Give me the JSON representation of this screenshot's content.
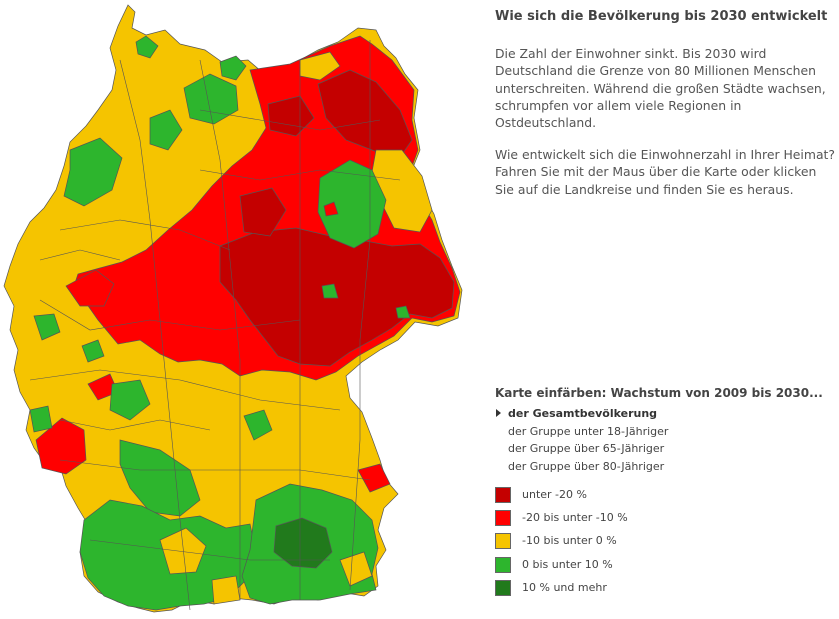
{
  "title": "Wie sich die Bevölkerung bis 2030 entwickelt",
  "paragraphs": [
    "Die Zahl der Einwohner sinkt. Bis 2030 wird Deutschland die Grenze von 80 Millionen Menschen unterschreiten. Während die großen Städte wachsen, schrumpfen vor allem viele Regionen in Ostdeutschland.",
    "Wie entwickelt sich die Einwohnerzahl in Ihrer Heimat? Fahren Sie mit der Maus über die Karte oder klicken Sie auf die Landkreise und finden Sie es heraus."
  ],
  "color_by": {
    "title": "Karte einfärben: Wachstum von 2009 bis 2030...",
    "options": [
      {
        "label": "der Gesamtbevölkerung",
        "active": true
      },
      {
        "label": "der Gruppe unter 18-Jähriger",
        "active": false
      },
      {
        "label": "der Gruppe über 65-Jähriger",
        "active": false
      },
      {
        "label": "der Gruppe über 80-Jähriger",
        "active": false
      }
    ]
  },
  "legend": [
    {
      "label": "unter -20 %",
      "color": "#c40000"
    },
    {
      "label": "-20 bis unter -10 %",
      "color": "#ff0000"
    },
    {
      "label": "-10 bis unter 0 %",
      "color": "#f5c400"
    },
    {
      "label": "0 bis unter 10 %",
      "color": "#2db52d"
    },
    {
      "label": "10 % und mehr",
      "color": "#217a1c"
    }
  ],
  "map": {
    "region": "Germany",
    "district_classes": [
      "lt-20",
      "-20to-10",
      "-10to0",
      "0to10",
      "ge10"
    ]
  }
}
